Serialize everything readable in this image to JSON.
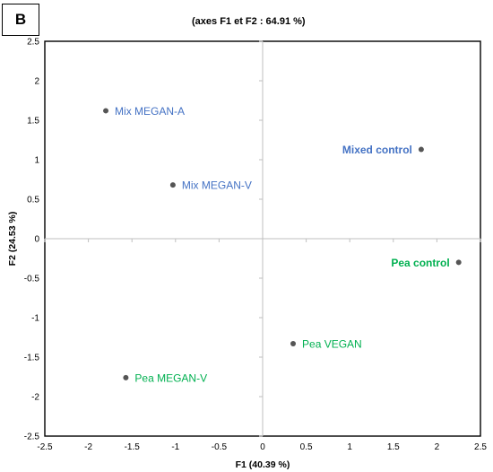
{
  "panel_label": "B",
  "chart_data": {
    "type": "scatter",
    "title": "(axes F1 et F2 : 64.91 %)",
    "xlabel": "F1 (40.39 %)",
    "ylabel": "F2 (24.53 %)",
    "xlim": [
      -2.5,
      2.5
    ],
    "ylim": [
      -2.5,
      2.5
    ],
    "xticks": [
      "-2.5",
      "-2",
      "-1.5",
      "-1",
      "-0.5",
      "0",
      "0.5",
      "1",
      "1.5",
      "2",
      "2.5"
    ],
    "yticks": [
      "2.5",
      "2",
      "1.5",
      "1",
      "0.5",
      "0",
      "-0.5",
      "-1",
      "-1.5",
      "-2",
      "-2.5"
    ],
    "grid": false,
    "point_color": "#555555",
    "points": [
      {
        "label": "Mix MEGAN-A",
        "x": -1.8,
        "y": 1.62,
        "color": "#4472C4",
        "bold": false,
        "label_side": "right"
      },
      {
        "label": "Mix MEGAN-V",
        "x": -1.03,
        "y": 0.68,
        "color": "#4472C4",
        "bold": false,
        "label_side": "right"
      },
      {
        "label": "Mixed control",
        "x": 1.82,
        "y": 1.13,
        "color": "#4472C4",
        "bold": true,
        "label_side": "left"
      },
      {
        "label": "Pea control",
        "x": 2.25,
        "y": -0.3,
        "color": "#00B050",
        "bold": true,
        "label_side": "left"
      },
      {
        "label": "Pea VEGAN",
        "x": 0.35,
        "y": -1.33,
        "color": "#00B050",
        "bold": false,
        "label_side": "right"
      },
      {
        "label": "Pea MEGAN-V",
        "x": -1.57,
        "y": -1.76,
        "color": "#00B050",
        "bold": false,
        "label_side": "right"
      }
    ]
  }
}
